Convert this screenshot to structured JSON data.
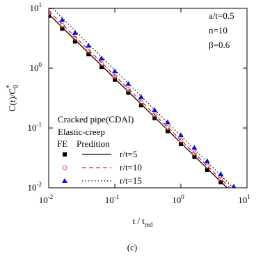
{
  "chart_data": {
    "type": "scatter",
    "log_x": true,
    "log_y": true,
    "xlim": [
      0.01,
      10
    ],
    "ylim": [
      0.01,
      10
    ],
    "xticks": [
      {
        "value": 0.01,
        "label": "10",
        "exponent": "-2"
      },
      {
        "value": 0.1,
        "label": "10",
        "exponent": "-1"
      },
      {
        "value": 1,
        "label": "10",
        "exponent": "0"
      },
      {
        "value": 10,
        "label": "10",
        "exponent": "1"
      }
    ],
    "yticks": [
      {
        "value": 0.01,
        "label": "10",
        "exponent": "-2"
      },
      {
        "value": 0.1,
        "label": "10",
        "exponent": "-1"
      },
      {
        "value": 1,
        "label": "10",
        "exponent": "0"
      },
      {
        "value": 10,
        "label": "10",
        "exponent": "1"
      }
    ],
    "x_label": {
      "main": "t / t",
      "sub": "red"
    },
    "y_label": {
      "main": "C(t)/C",
      "sup": "*",
      "sub": "0"
    },
    "annotations": [
      "a/t=0.5",
      "n=10",
      "β=0.6"
    ],
    "legend_title": [
      "Cracked pipe(CDAI)",
      "Elastic-creep"
    ],
    "legend_headers": [
      "FE",
      "Predition"
    ],
    "caption": "(c)",
    "series": [
      {
        "name": "r/t=5",
        "color": "#000000",
        "marker": "square",
        "line_style": "solid",
        "line_color": "#000000",
        "x": [
          0.01,
          0.016,
          0.025,
          0.04,
          0.063,
          0.1,
          0.16,
          0.25,
          0.4,
          0.63,
          1,
          1.6,
          2.5,
          4
        ],
        "values": [
          7.5,
          4.58,
          2.8,
          1.71,
          1.05,
          0.64,
          0.39,
          0.24,
          0.146,
          0.089,
          0.054,
          0.033,
          0.02,
          0.0124
        ],
        "line_x": [
          0.01,
          5.0
        ],
        "line_values": [
          8,
          0.01
        ]
      },
      {
        "name": "r/t=10",
        "color": "#e05050",
        "marker": "circle",
        "line_style": "dashed",
        "line_color": "#e02020",
        "x": [
          0.01,
          0.016,
          0.025,
          0.04,
          0.063,
          0.1,
          0.16,
          0.25,
          0.4,
          0.63,
          1,
          1.6,
          2.5,
          4
        ],
        "values": [
          8.5,
          5.2,
          3.17,
          1.94,
          1.19,
          0.73,
          0.44,
          0.27,
          0.166,
          0.101,
          0.062,
          0.038,
          0.023,
          0.014
        ],
        "line_x": [
          0.01,
          5.5
        ],
        "line_values": [
          9,
          0.01
        ]
      },
      {
        "name": "r/t=15",
        "color": "#1010e0",
        "marker": "triangle",
        "line_style": "dotted",
        "line_color": "#000000",
        "x": [
          0.01,
          0.016,
          0.025,
          0.04,
          0.063,
          0.1,
          0.16,
          0.25,
          0.4,
          0.63,
          1,
          1.6,
          2.5,
          4,
          6.3
        ],
        "values": [
          10.5,
          6.4,
          3.92,
          2.39,
          1.46,
          0.89,
          0.55,
          0.33,
          0.2,
          0.125,
          0.076,
          0.047,
          0.028,
          0.017,
          0.0105
        ],
        "line_x": [
          0.0115,
          6.2
        ],
        "line_values": [
          10,
          0.01
        ]
      }
    ]
  }
}
